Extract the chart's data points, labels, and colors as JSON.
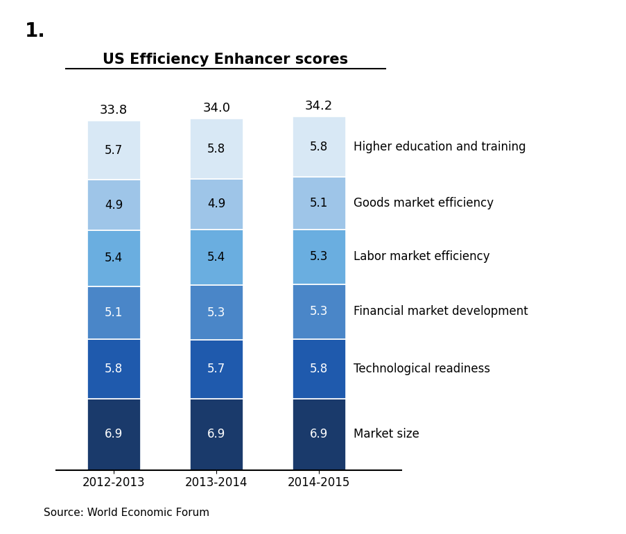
{
  "title": "US Efficiency Enhancer scores",
  "number_label": "1.",
  "source_text": "Source: World Economic Forum",
  "years": [
    "2012-2013",
    "2013-2014",
    "2014-2015"
  ],
  "totals": [
    "33.8",
    "34.0",
    "34.2"
  ],
  "categories": [
    "Market size",
    "Technological readiness",
    "Financial market development",
    "Labor market efficiency",
    "Goods market efficiency",
    "Higher education and training"
  ],
  "values": {
    "2012-2013": [
      6.9,
      5.8,
      5.1,
      5.4,
      4.9,
      5.7
    ],
    "2013-2014": [
      6.9,
      5.7,
      5.3,
      5.4,
      4.9,
      5.8
    ],
    "2014-2015": [
      6.9,
      5.8,
      5.3,
      5.3,
      5.1,
      5.8
    ]
  },
  "colors": [
    "#1a3a6b",
    "#1f5aad",
    "#4a86c8",
    "#6aaee0",
    "#9ec5e8",
    "#d8e8f5"
  ],
  "text_colors": [
    "white",
    "white",
    "white",
    "black",
    "black",
    "black"
  ],
  "bar_width": 0.13,
  "bar_positions": [
    0.2,
    0.45,
    0.7
  ],
  "figsize": [
    9.04,
    7.7
  ],
  "dpi": 100,
  "background_color": "#ffffff",
  "font_color_dark": "#000000",
  "font_color_light": "#ffffff",
  "label_fontsize": 12,
  "tick_fontsize": 12,
  "title_fontsize": 15,
  "annotation_fontsize": 13
}
